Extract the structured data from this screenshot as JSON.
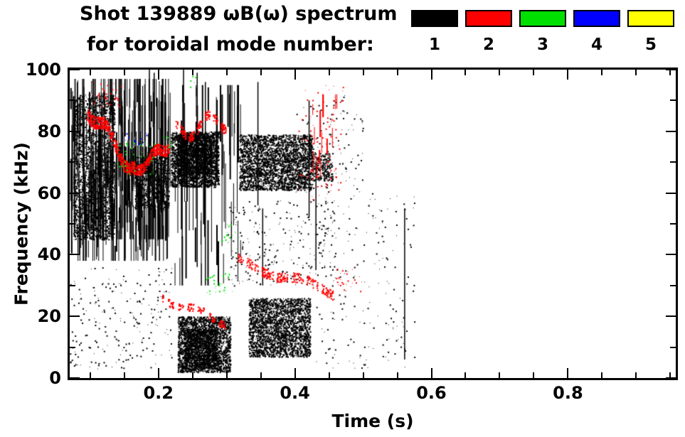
{
  "header": {
    "title": "Shot 139889 ωB(ω) spectrum",
    "subtitle": "for toroidal mode number:"
  },
  "legend": {
    "entries": [
      {
        "label": "1",
        "color": "#000000"
      },
      {
        "label": "2",
        "color": "#ff0000"
      },
      {
        "label": "3",
        "color": "#00e000"
      },
      {
        "label": "4",
        "color": "#0000ff"
      },
      {
        "label": "5",
        "color": "#ffff00"
      }
    ]
  },
  "chart_data": {
    "type": "scatter",
    "title": "Shot 139889 ωB(ω) spectrum for toroidal mode number",
    "xlabel": "Time (s)",
    "ylabel": "Frequency (kHz)",
    "xlim": [
      0.07,
      0.958
    ],
    "ylim": [
      0,
      100
    ],
    "x_ticks": {
      "major": [
        0.2,
        0.4,
        0.6,
        0.8
      ],
      "labels": [
        "0.2",
        "0.4",
        "0.6",
        "0.8"
      ],
      "minor_step": 0.05
    },
    "y_ticks": {
      "major": [
        0,
        20,
        40,
        60,
        80,
        100
      ],
      "labels": [
        "0",
        "20",
        "40",
        "60",
        "80",
        "100"
      ],
      "minor_step": 10
    },
    "grid": false,
    "legend_position": "top-right",
    "series": [
      {
        "name": "n=1",
        "mode": 1,
        "color": "#000000",
        "clusters": [
          {
            "type": "blob",
            "t": [
              0.075,
              0.135
            ],
            "f": [
              45,
              92
            ],
            "count": 2200,
            "size": 2
          },
          {
            "type": "streaks",
            "t": [
              0.07,
              0.215
            ],
            "f": [
              38,
              97
            ],
            "count": 260,
            "len": [
              4,
              30
            ]
          },
          {
            "type": "streaks",
            "t": [
              0.1,
              0.21
            ],
            "f": [
              45,
              75
            ],
            "count": 120,
            "len": [
              6,
              22
            ]
          },
          {
            "type": "blob",
            "t": [
              0.165,
              0.215
            ],
            "f": [
              55,
              72
            ],
            "count": 900,
            "size": 2
          },
          {
            "type": "blob",
            "t": [
              0.218,
              0.288
            ],
            "f": [
              62,
              80
            ],
            "count": 2600,
            "size": 2
          },
          {
            "type": "blob",
            "t": [
              0.228,
              0.278
            ],
            "f": [
              66,
              79
            ],
            "count": 1200,
            "size": 2
          },
          {
            "type": "blob",
            "t": [
              0.318,
              0.425
            ],
            "f": [
              61,
              79
            ],
            "count": 3200,
            "size": 2
          },
          {
            "type": "blob",
            "t": [
              0.425,
              0.455
            ],
            "f": [
              64,
              73
            ],
            "count": 260,
            "size": 2
          },
          {
            "type": "blob",
            "t": [
              0.228,
              0.305
            ],
            "f": [
              2,
              20
            ],
            "count": 2600,
            "size": 2
          },
          {
            "type": "blob",
            "t": [
              0.238,
              0.285
            ],
            "f": [
              3,
              16
            ],
            "count": 1200,
            "size": 2
          },
          {
            "type": "blob",
            "t": [
              0.332,
              0.422
            ],
            "f": [
              7,
              26
            ],
            "count": 2800,
            "size": 2
          },
          {
            "type": "streaks",
            "t": [
              0.215,
              0.32
            ],
            "f": [
              30,
              95
            ],
            "count": 60,
            "len": [
              5,
              40
            ]
          },
          {
            "type": "speckle",
            "t": [
              0.07,
              0.22
            ],
            "f": [
              3,
              36
            ],
            "count": 220
          },
          {
            "type": "speckle",
            "t": [
              0.3,
              0.46
            ],
            "f": [
              30,
              58
            ],
            "count": 260
          },
          {
            "type": "speckle",
            "t": [
              0.43,
              0.575
            ],
            "f": [
              3,
              60
            ],
            "count": 200
          },
          {
            "type": "speckle",
            "t": [
              0.4,
              0.5
            ],
            "f": [
              60,
              92
            ],
            "count": 120
          },
          {
            "type": "lines",
            "segments": [
              [
                0.186,
                45,
                100
              ],
              [
                0.193,
                52,
                99
              ],
              [
                0.236,
                62,
                100
              ],
              [
                0.256,
                36,
                99
              ],
              [
                0.268,
                30,
                96
              ],
              [
                0.345,
                56,
                96
              ],
              [
                0.42,
                52,
                90
              ],
              [
                0.56,
                6,
                55
              ],
              [
                0.352,
                30,
                55
              ],
              [
                0.43,
                35,
                70
              ]
            ]
          }
        ]
      },
      {
        "name": "n=2",
        "mode": 2,
        "color": "#ff0000",
        "clusters": [
          {
            "type": "band",
            "t": [
              0.095,
              0.165
            ],
            "fStart": 88,
            "fEnd": 67,
            "thick": 4,
            "count": 420,
            "wobble": 2.5,
            "dash": 0
          },
          {
            "type": "band",
            "t": [
              0.162,
              0.215
            ],
            "fStart": 67,
            "fEnd": 76,
            "thick": 3.5,
            "count": 300,
            "wobble": 1.5,
            "dash": 0
          },
          {
            "type": "band",
            "t": [
              0.225,
              0.3
            ],
            "fStart": 80,
            "fEnd": 84,
            "thick": 3,
            "count": 260,
            "wobble": 3,
            "dash": 0.25
          },
          {
            "type": "speckle",
            "t": [
              0.1,
              0.145
            ],
            "f": [
              88,
              96
            ],
            "count": 40
          },
          {
            "type": "band",
            "t": [
              0.315,
              0.455
            ],
            "fStart": 38,
            "fEnd": 28,
            "thick": 3,
            "count": 330,
            "wobble": 1.2,
            "dash": 0.15
          },
          {
            "type": "band",
            "t": [
              0.205,
              0.3
            ],
            "fStart": 26,
            "fEnd": 18,
            "thick": 2.5,
            "count": 180,
            "wobble": 1,
            "dash": 0.3
          },
          {
            "type": "speckle",
            "t": [
              0.405,
              0.47
            ],
            "f": [
              58,
              95
            ],
            "count": 90
          },
          {
            "type": "streaks",
            "t": [
              0.425,
              0.462
            ],
            "f": [
              62,
              92
            ],
            "count": 14,
            "len": [
              3,
              9
            ]
          },
          {
            "type": "speckle",
            "t": [
              0.46,
              0.5
            ],
            "f": [
              28,
              36
            ],
            "count": 25
          }
        ]
      },
      {
        "name": "n=3",
        "mode": 3,
        "color": "#00e000",
        "clusters": [
          {
            "type": "speckle",
            "t": [
              0.135,
              0.195
            ],
            "f": [
              66,
              77
            ],
            "count": 45
          },
          {
            "type": "speckle",
            "t": [
              0.268,
              0.308
            ],
            "f": [
              27,
              34
            ],
            "count": 30
          },
          {
            "type": "speckle",
            "t": [
              0.292,
              0.318
            ],
            "f": [
              42,
              50
            ],
            "count": 18
          },
          {
            "type": "speckle",
            "t": [
              0.245,
              0.255
            ],
            "f": [
              94,
              98
            ],
            "count": 5
          },
          {
            "type": "speckle",
            "t": [
              0.205,
              0.22
            ],
            "f": [
              74,
              79
            ],
            "count": 8
          }
        ]
      },
      {
        "name": "n=4",
        "mode": 4,
        "color": "#0000ff",
        "clusters": [
          {
            "type": "speckle",
            "t": [
              0.162,
              0.185
            ],
            "f": [
              75,
              80
            ],
            "count": 12
          },
          {
            "type": "speckle",
            "t": [
              0.148,
              0.158
            ],
            "f": [
              77,
              80
            ],
            "count": 4
          }
        ]
      },
      {
        "name": "n=5",
        "mode": 5,
        "color": "#ffff00",
        "clusters": []
      }
    ]
  }
}
